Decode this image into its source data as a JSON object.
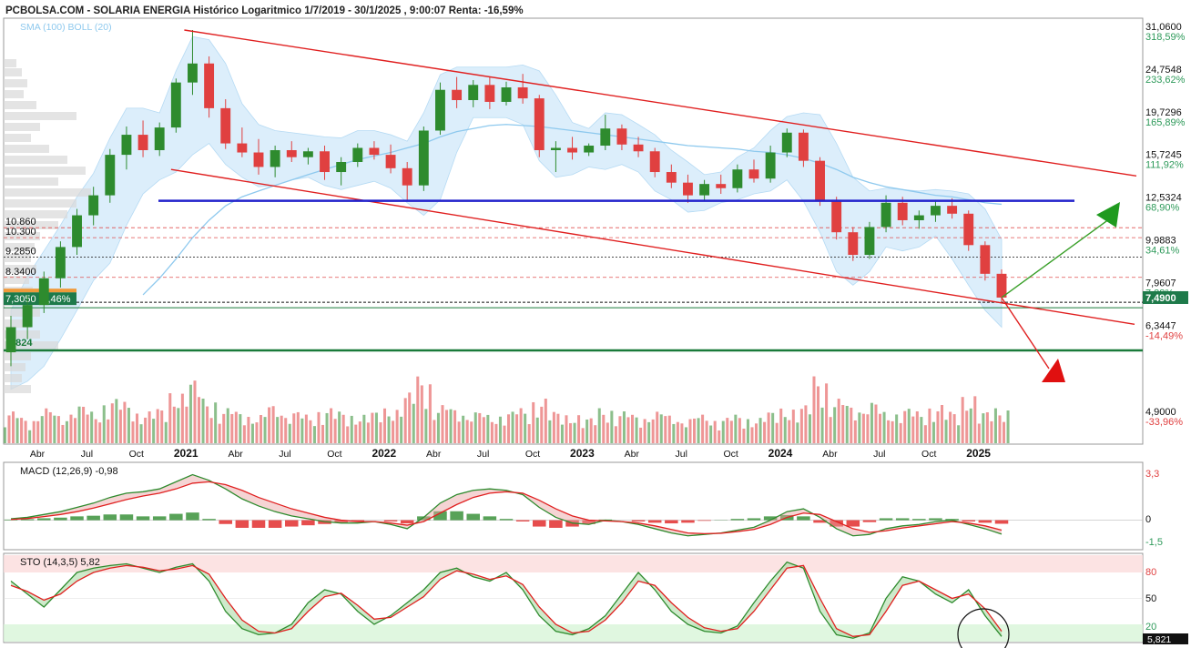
{
  "header": {
    "title": "PCBOLSA.COM - SOLARIA ENERGIA Histórico Logaritmico 1/7/2019 - 30/1/2025 , 9:00:07 Renta: -16,59%",
    "indicators_legend": "SMA (100) BOLL (20)"
  },
  "colors": {
    "up": "#2e8b2e",
    "down": "#e04040",
    "sma": "#8ec9ee",
    "boll_fill": "#d6ecfb",
    "channel": "#e02020",
    "support": "#2222cc",
    "base_line": "#1a7a3a",
    "arrow_up": "#3aa02a",
    "arrow_down": "#e02020"
  },
  "chart_data": [
    {
      "type": "candlestick",
      "name": "price",
      "scale": "log",
      "ylim": [
        4.55,
        31.06
      ],
      "y_ticks": [
        {
          "value": "31,0600",
          "pct": "318,59%"
        },
        {
          "value": "24,7548",
          "pct": "233,62%"
        },
        {
          "value": "19,7296",
          "pct": "165,89%"
        },
        {
          "value": "15,7245",
          "pct": "111,92%"
        },
        {
          "value": "12,5324",
          "pct": "68,90%"
        },
        {
          "value": "9,9883",
          "pct": "34,61%"
        },
        {
          "value": "7,9607",
          "pct": "7,28%"
        },
        {
          "value": "6,3447",
          "pct": "-14,49%"
        },
        {
          "value": "4,9000",
          "pct": "-33,96%"
        }
      ],
      "x_labels": [
        "Abr",
        "Jul",
        "Oct",
        "2021",
        "Abr",
        "Jul",
        "Oct",
        "2022",
        "Abr",
        "Jul",
        "Oct",
        "2023",
        "Abr",
        "Jul",
        "Oct",
        "2024",
        "Abr",
        "Jul",
        "Oct",
        "2025"
      ],
      "x_label_index": [
        3,
        6,
        9,
        12,
        15,
        18,
        21,
        24,
        27,
        30,
        33,
        36,
        39,
        42,
        45,
        48,
        51,
        54,
        57,
        60
      ],
      "levels": [
        {
          "label": "10.860",
          "value": 10.86
        },
        {
          "label": "10.300",
          "value": 10.3
        },
        {
          "label": "9.2850",
          "value": 9.285
        },
        {
          "label": "8.3400",
          "value": 8.34
        },
        {
          "label": "7,3050 -2,46%",
          "value": 7.305
        },
        {
          "label": "5.824",
          "value": 5.824
        }
      ],
      "last_price": "7,4900",
      "support_line": 12.53,
      "channel_upper": [
        [
          10,
          31.06
        ],
        [
          68,
          14.3
        ]
      ],
      "channel_lower": [
        [
          9,
          14.8
        ],
        [
          68,
          6.5
        ]
      ],
      "candles_monthly": [
        {
          "o": 5.6,
          "h": 6.8,
          "l": 5.2,
          "c": 6.4
        },
        {
          "o": 6.4,
          "h": 7.6,
          "l": 6.0,
          "c": 7.2
        },
        {
          "o": 7.2,
          "h": 8.6,
          "l": 6.9,
          "c": 8.3
        },
        {
          "o": 8.3,
          "h": 10.1,
          "l": 7.9,
          "c": 9.8
        },
        {
          "o": 9.8,
          "h": 12.0,
          "l": 9.4,
          "c": 11.6
        },
        {
          "o": 11.6,
          "h": 13.5,
          "l": 11.0,
          "c": 12.9
        },
        {
          "o": 12.9,
          "h": 16.5,
          "l": 12.4,
          "c": 16.0
        },
        {
          "o": 16.0,
          "h": 18.6,
          "l": 14.8,
          "c": 17.8
        },
        {
          "o": 17.8,
          "h": 19.2,
          "l": 15.8,
          "c": 16.4
        },
        {
          "o": 16.4,
          "h": 19.0,
          "l": 15.9,
          "c": 18.5
        },
        {
          "o": 18.5,
          "h": 24.0,
          "l": 18.0,
          "c": 23.5
        },
        {
          "o": 23.5,
          "h": 31.06,
          "l": 22.0,
          "c": 26.0
        },
        {
          "o": 26.0,
          "h": 27.0,
          "l": 19.5,
          "c": 20.5
        },
        {
          "o": 20.5,
          "h": 21.5,
          "l": 16.5,
          "c": 17.0
        },
        {
          "o": 17.0,
          "h": 18.5,
          "l": 15.8,
          "c": 16.2
        },
        {
          "o": 16.2,
          "h": 17.4,
          "l": 14.4,
          "c": 15.0
        },
        {
          "o": 15.0,
          "h": 16.8,
          "l": 14.2,
          "c": 16.4
        },
        {
          "o": 16.4,
          "h": 17.2,
          "l": 15.4,
          "c": 15.8
        },
        {
          "o": 15.8,
          "h": 16.6,
          "l": 15.2,
          "c": 16.3
        },
        {
          "o": 16.3,
          "h": 16.8,
          "l": 14.0,
          "c": 14.6
        },
        {
          "o": 14.6,
          "h": 15.8,
          "l": 13.6,
          "c": 15.4
        },
        {
          "o": 15.4,
          "h": 17.0,
          "l": 15.0,
          "c": 16.6
        },
        {
          "o": 16.6,
          "h": 17.2,
          "l": 15.6,
          "c": 16.0
        },
        {
          "o": 16.0,
          "h": 16.9,
          "l": 14.5,
          "c": 14.9
        },
        {
          "o": 14.9,
          "h": 15.4,
          "l": 12.6,
          "c": 13.6
        },
        {
          "o": 13.6,
          "h": 18.6,
          "l": 13.2,
          "c": 18.2
        },
        {
          "o": 18.2,
          "h": 23.5,
          "l": 17.8,
          "c": 22.6
        },
        {
          "o": 22.6,
          "h": 24.2,
          "l": 20.5,
          "c": 21.4
        },
        {
          "o": 21.4,
          "h": 23.8,
          "l": 20.6,
          "c": 23.2
        },
        {
          "o": 23.2,
          "h": 24.2,
          "l": 20.4,
          "c": 21.2
        },
        {
          "o": 21.2,
          "h": 23.6,
          "l": 20.8,
          "c": 22.9
        },
        {
          "o": 22.9,
          "h": 24.6,
          "l": 21.0,
          "c": 21.6
        },
        {
          "o": 21.6,
          "h": 22.0,
          "l": 15.8,
          "c": 16.4
        },
        {
          "o": 16.4,
          "h": 17.2,
          "l": 14.6,
          "c": 16.6
        },
        {
          "o": 16.6,
          "h": 17.6,
          "l": 15.6,
          "c": 16.2
        },
        {
          "o": 16.2,
          "h": 17.0,
          "l": 15.9,
          "c": 16.8
        },
        {
          "o": 16.8,
          "h": 19.8,
          "l": 16.4,
          "c": 18.4
        },
        {
          "o": 18.4,
          "h": 18.8,
          "l": 16.4,
          "c": 16.9
        },
        {
          "o": 16.9,
          "h": 17.6,
          "l": 15.8,
          "c": 16.3
        },
        {
          "o": 16.3,
          "h": 16.6,
          "l": 14.2,
          "c": 14.6
        },
        {
          "o": 14.6,
          "h": 15.2,
          "l": 13.4,
          "c": 13.8
        },
        {
          "o": 13.8,
          "h": 14.4,
          "l": 12.4,
          "c": 12.9
        },
        {
          "o": 12.9,
          "h": 14.0,
          "l": 12.6,
          "c": 13.7
        },
        {
          "o": 13.7,
          "h": 14.4,
          "l": 13.0,
          "c": 13.4
        },
        {
          "o": 13.4,
          "h": 15.2,
          "l": 13.1,
          "c": 14.8
        },
        {
          "o": 14.8,
          "h": 15.6,
          "l": 13.8,
          "c": 14.1
        },
        {
          "o": 14.1,
          "h": 16.8,
          "l": 13.8,
          "c": 16.2
        },
        {
          "o": 16.2,
          "h": 18.4,
          "l": 15.8,
          "c": 18.0
        },
        {
          "o": 18.0,
          "h": 18.3,
          "l": 15.0,
          "c": 15.5
        },
        {
          "o": 15.5,
          "h": 15.8,
          "l": 12.2,
          "c": 12.6
        },
        {
          "o": 12.6,
          "h": 12.8,
          "l": 10.2,
          "c": 10.6
        },
        {
          "o": 10.6,
          "h": 10.9,
          "l": 9.1,
          "c": 9.4
        },
        {
          "o": 9.4,
          "h": 11.2,
          "l": 9.2,
          "c": 10.9
        },
        {
          "o": 10.9,
          "h": 12.9,
          "l": 10.6,
          "c": 12.4
        },
        {
          "o": 12.4,
          "h": 12.8,
          "l": 11.0,
          "c": 11.3
        },
        {
          "o": 11.3,
          "h": 11.9,
          "l": 10.8,
          "c": 11.6
        },
        {
          "o": 11.6,
          "h": 12.6,
          "l": 11.2,
          "c": 12.2
        },
        {
          "o": 12.2,
          "h": 12.7,
          "l": 11.4,
          "c": 11.7
        },
        {
          "o": 11.7,
          "h": 11.9,
          "l": 9.6,
          "c": 9.9
        },
        {
          "o": 9.9,
          "h": 10.1,
          "l": 8.2,
          "c": 8.5
        },
        {
          "o": 8.5,
          "h": 8.7,
          "l": 7.3,
          "c": 7.49
        }
      ],
      "volume": [
        0.5,
        0.4,
        0.55,
        0.45,
        0.6,
        0.5,
        0.7,
        0.65,
        0.5,
        0.55,
        0.8,
        1.0,
        0.7,
        0.55,
        0.5,
        0.45,
        0.6,
        0.5,
        0.45,
        0.55,
        0.5,
        0.45,
        0.5,
        0.55,
        0.8,
        1.05,
        0.6,
        0.55,
        0.5,
        0.45,
        0.5,
        0.55,
        0.7,
        0.5,
        0.45,
        0.4,
        0.55,
        0.5,
        0.45,
        0.5,
        0.45,
        0.4,
        0.45,
        0.4,
        0.45,
        0.4,
        0.5,
        0.55,
        0.6,
        1.05,
        0.7,
        0.6,
        0.65,
        0.5,
        0.55,
        0.5,
        0.6,
        0.5,
        0.75,
        0.5,
        0.55
      ],
      "sma100": [
        null,
        null,
        null,
        null,
        null,
        null,
        null,
        null,
        7.6,
        8.3,
        9.2,
        10.3,
        11.3,
        12.2,
        12.8,
        13.2,
        13.6,
        14.0,
        14.4,
        14.8,
        15.2,
        15.6,
        15.9,
        16.2,
        16.6,
        17.0,
        17.6,
        18.1,
        18.4,
        18.7,
        18.8,
        18.7,
        18.6,
        18.4,
        18.2,
        18.0,
        17.8,
        17.6,
        17.4,
        17.2,
        17.0,
        16.8,
        16.7,
        16.6,
        16.5,
        16.3,
        16.2,
        16.0,
        15.7,
        15.3,
        14.8,
        14.2,
        13.8,
        13.5,
        13.3,
        13.1,
        12.9,
        12.8,
        12.6,
        12.4,
        12.3
      ],
      "boll_upper": [
        7.0,
        8.4,
        9.6,
        11.0,
        12.8,
        14.5,
        17.5,
        20.5,
        20.5,
        20.0,
        25.0,
        30.0,
        29.5,
        26.0,
        21.0,
        18.8,
        18.2,
        18.0,
        17.8,
        17.6,
        17.5,
        18.2,
        18.2,
        17.8,
        17.2,
        20.0,
        24.5,
        25.5,
        25.5,
        25.5,
        25.5,
        25.8,
        25.0,
        22.0,
        19.0,
        18.4,
        20.0,
        19.8,
        18.8,
        17.8,
        16.4,
        15.4,
        14.4,
        14.6,
        15.8,
        16.6,
        18.2,
        19.6,
        20.0,
        19.8,
        17.0,
        14.2,
        13.2,
        13.4,
        13.3,
        13.2,
        13.3,
        13.2,
        13.0,
        12.0,
        10.2
      ],
      "boll_lower": [
        4.6,
        4.8,
        5.2,
        6.0,
        7.0,
        8.2,
        9.0,
        11.0,
        13.0,
        14.0,
        14.6,
        16.0,
        17.0,
        15.2,
        14.2,
        13.5,
        13.6,
        14.0,
        14.2,
        13.6,
        13.3,
        13.6,
        13.9,
        13.4,
        12.4,
        11.6,
        12.6,
        16.2,
        19.5,
        19.5,
        19.5,
        18.8,
        15.5,
        14.2,
        14.4,
        15.0,
        14.8,
        15.2,
        14.6,
        13.2,
        12.6,
        11.8,
        11.9,
        12.4,
        12.6,
        13.0,
        13.2,
        14.0,
        12.5,
        10.6,
        8.6,
        8.0,
        8.6,
        9.8,
        9.6,
        9.8,
        10.4,
        9.2,
        8.0,
        7.0,
        6.4
      ]
    },
    {
      "type": "line",
      "name": "MACD (12,26,9)",
      "label": "MACD (12,26,9)  -0,98",
      "y_ticks": [
        "3,3",
        "0",
        "-1,5"
      ],
      "ylim": [
        -1.5,
        3.3
      ],
      "macd": [
        0.1,
        0.2,
        0.4,
        0.6,
        0.9,
        1.2,
        1.6,
        1.9,
        2.0,
        2.2,
        2.7,
        3.2,
        2.8,
        2.2,
        1.5,
        1.0,
        0.6,
        0.3,
        0.1,
        -0.1,
        -0.2,
        -0.2,
        -0.1,
        -0.3,
        -0.6,
        0.2,
        1.2,
        1.8,
        2.1,
        2.2,
        2.1,
        1.8,
        0.9,
        0.2,
        -0.2,
        -0.3,
        0.0,
        -0.1,
        -0.3,
        -0.6,
        -0.9,
        -1.1,
        -1.0,
        -0.9,
        -0.7,
        -0.5,
        0.0,
        0.6,
        0.8,
        0.2,
        -0.6,
        -1.1,
        -1.0,
        -0.6,
        -0.4,
        -0.3,
        -0.1,
        0.0,
        -0.3,
        -0.6,
        -0.98
      ],
      "signal": [
        0.05,
        0.12,
        0.25,
        0.4,
        0.6,
        0.85,
        1.15,
        1.45,
        1.7,
        1.9,
        2.2,
        2.6,
        2.7,
        2.5,
        2.1,
        1.6,
        1.2,
        0.8,
        0.5,
        0.2,
        0.0,
        -0.1,
        -0.1,
        -0.2,
        -0.35,
        -0.1,
        0.5,
        1.1,
        1.6,
        1.9,
        2.0,
        1.9,
        1.4,
        0.8,
        0.3,
        0.0,
        -0.05,
        -0.1,
        -0.2,
        -0.4,
        -0.65,
        -0.9,
        -0.95,
        -0.92,
        -0.8,
        -0.65,
        -0.3,
        0.2,
        0.5,
        0.4,
        -0.1,
        -0.6,
        -0.85,
        -0.75,
        -0.55,
        -0.4,
        -0.25,
        -0.1,
        -0.2,
        -0.4,
        -0.7
      ]
    },
    {
      "type": "line",
      "name": "STO (14,3,5)",
      "label": "STO (14,3,5)  5,82",
      "y_ticks": [
        "80",
        "50",
        "20"
      ],
      "ylim": [
        0,
        100
      ],
      "last_value": "5,821",
      "k": [
        70,
        55,
        40,
        60,
        80,
        85,
        88,
        90,
        85,
        80,
        86,
        90,
        70,
        35,
        15,
        8,
        10,
        20,
        45,
        60,
        55,
        35,
        20,
        30,
        45,
        60,
        80,
        85,
        75,
        70,
        80,
        60,
        30,
        12,
        8,
        15,
        30,
        55,
        80,
        60,
        35,
        20,
        12,
        10,
        18,
        45,
        70,
        92,
        85,
        35,
        8,
        4,
        10,
        50,
        75,
        70,
        55,
        45,
        60,
        30,
        6
      ],
      "d": [
        65,
        58,
        48,
        55,
        70,
        80,
        85,
        88,
        86,
        82,
        84,
        88,
        78,
        50,
        25,
        12,
        10,
        15,
        35,
        52,
        56,
        42,
        26,
        28,
        40,
        52,
        72,
        82,
        78,
        72,
        76,
        66,
        40,
        20,
        10,
        12,
        25,
        45,
        70,
        65,
        45,
        28,
        16,
        12,
        15,
        35,
        60,
        85,
        88,
        50,
        15,
        6,
        8,
        35,
        65,
        70,
        60,
        50,
        55,
        38,
        12
      ]
    }
  ]
}
